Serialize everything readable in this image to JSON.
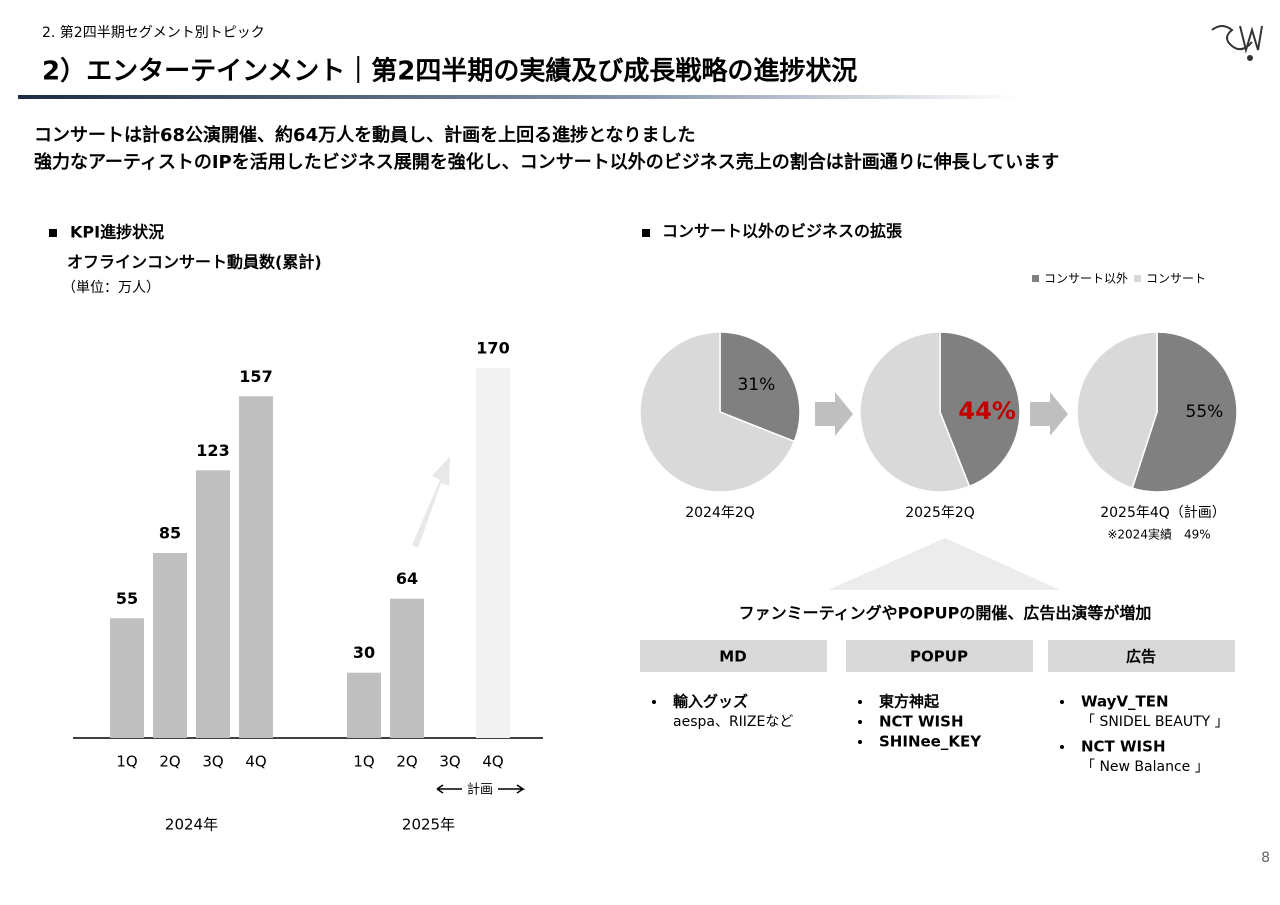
{
  "header": {
    "section": "2. 第2四半期セグメント別トピック",
    "title": "2）エンターテインメント｜第2四半期の実績及び成長戦略の進捗状況"
  },
  "lead": [
    "コンサートは計68公演開催、約64万人を動員し、計画を上回る進捗となりました",
    "強力なアーティストのIPを活用したビジネス展開を強化し、コンサート以外のビジネス売上の割合は計画通りに伸長しています"
  ],
  "kpi": {
    "heading": "KPI進捗状況"
  },
  "business": {
    "heading": "コンサート以外のビジネスの拡張",
    "legend": [
      {
        "name": "コンサート以外",
        "color": "#808080"
      },
      {
        "name": "コンサート",
        "color": "#d9d9d9"
      }
    ],
    "note": "※2024実績　49%"
  },
  "chart_data": [
    {
      "type": "bar",
      "title": "オフラインコンサート動員数(累計)",
      "subtitle": "（単位：万人）",
      "categories": [
        "1Q",
        "2Q",
        "3Q",
        "4Q",
        "1Q",
        "2Q",
        "3Q",
        "4Q"
      ],
      "values": [
        55,
        85,
        123,
        157,
        30,
        64,
        null,
        170
      ],
      "groups": [
        "2024年",
        "2025年"
      ],
      "color": "#bfbfbf",
      "plan_color": "#f2f2f2",
      "plan_indices": [
        7
      ],
      "annotation": "計画"
    },
    {
      "type": "pie",
      "title": "2024年2Q",
      "categories": [
        "コンサート以外",
        "コンサート"
      ],
      "values": [
        31,
        69
      ],
      "value_labels": [
        "31%",
        null
      ]
    },
    {
      "type": "pie",
      "title": "2025年2Q",
      "categories": [
        "コンサート以外",
        "コンサート"
      ],
      "values": [
        44,
        56
      ],
      "value_labels": [
        "44%",
        null
      ],
      "label_color": "#c00000"
    },
    {
      "type": "pie",
      "title": "2025年4Q（計画）",
      "categories": [
        "コンサート以外",
        "コンサート"
      ],
      "values": [
        55,
        45
      ],
      "value_labels": [
        "55%",
        null
      ]
    }
  ],
  "table": {
    "title": "ファンミーティングやPOPUPの開催、広告出演等が増加",
    "columns": [
      {
        "header": "MD",
        "items": [
          {
            "text": "輸入グッズ",
            "sub": "aespa、RIIZEなど"
          }
        ]
      },
      {
        "header": "POPUP",
        "items": [
          {
            "text": "東方神起"
          },
          {
            "text": "NCT WISH"
          },
          {
            "text": "SHINee_KEY"
          }
        ]
      },
      {
        "header": "広告",
        "items": [
          {
            "text": "WayV_TEN",
            "sub": "「 SNIDEL BEAUTY 」"
          },
          {
            "text": "NCT WISH",
            "sub": "「 New Balance 」"
          }
        ]
      }
    ]
  },
  "page": "8"
}
